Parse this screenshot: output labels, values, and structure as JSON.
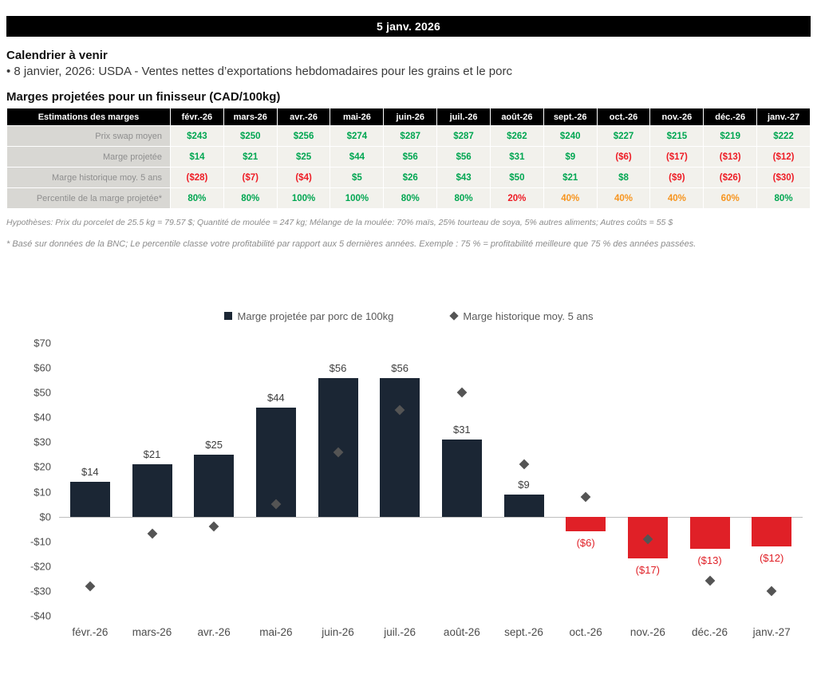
{
  "title_bar": {
    "date": "5 janv. 2026"
  },
  "calendar": {
    "heading": "Calendrier à venir",
    "items": [
      "• 8 janvier, 2026: USDA - Ventes nettes d’exportations hebdomadaires pour les grains et le porc"
    ]
  },
  "margins": {
    "heading": "Marges projetées pour un finisseur (CAD/100kg)",
    "table": {
      "columns": [
        "Estimations des marges",
        "févr.-26",
        "mars-26",
        "avr.-26",
        "mai-26",
        "juin-26",
        "juil.-26",
        "août-26",
        "sept.-26",
        "oct.-26",
        "nov.-26",
        "déc.-26",
        "janv.-27"
      ],
      "rows": [
        {
          "label": "Prix swap moyen",
          "values": [
            "$243",
            "$250",
            "$256",
            "$274",
            "$287",
            "$287",
            "$262",
            "$240",
            "$227",
            "$215",
            "$219",
            "$222"
          ],
          "classes": [
            "pos",
            "pos",
            "pos",
            "pos",
            "pos",
            "pos",
            "pos",
            "pos",
            "pos",
            "pos",
            "pos",
            "pos"
          ]
        },
        {
          "label": "Marge projetée",
          "values": [
            "$14",
            "$21",
            "$25",
            "$44",
            "$56",
            "$56",
            "$31",
            "$9",
            "($6)",
            "($17)",
            "($13)",
            "($12)"
          ],
          "classes": [
            "pos",
            "pos",
            "pos",
            "pos",
            "pos",
            "pos",
            "pos",
            "pos",
            "neg",
            "neg",
            "neg",
            "neg"
          ]
        },
        {
          "label": "Marge historique moy. 5 ans",
          "values": [
            "($28)",
            "($7)",
            "($4)",
            "$5",
            "$26",
            "$43",
            "$50",
            "$21",
            "$8",
            "($9)",
            "($26)",
            "($30)"
          ],
          "classes": [
            "neg",
            "neg",
            "neg",
            "pos",
            "pos",
            "pos",
            "pos",
            "pos",
            "pos",
            "neg",
            "neg",
            "neg"
          ]
        },
        {
          "label": "Percentile de la marge projetée*",
          "values": [
            "80%",
            "80%",
            "100%",
            "100%",
            "80%",
            "80%",
            "20%",
            "40%",
            "40%",
            "40%",
            "60%",
            "80%"
          ],
          "classes": [
            "pos",
            "pos",
            "pos",
            "pos",
            "pos",
            "pos",
            "neg",
            "warn",
            "warn",
            "warn",
            "warn",
            "pos"
          ]
        }
      ]
    },
    "hypotheses": "Hypothèses: Prix du porcelet de 25.5 kg = 79.57 $; Quantité de moulée = 247 kg; Mélange de la moulée: 70% maïs, 25% tourteau de soya, 5% autres aliments; Autres coûts = 55 $",
    "footnote": "* Basé sur données de la BNC; Le percentile classe votre profitabilité par rapport aux 5 dernières années. Exemple : 75 % = profitabilité meilleure que 75 % des années passées."
  },
  "chart_data": {
    "type": "bar",
    "categories": [
      "févr.-26",
      "mars-26",
      "avr.-26",
      "mai-26",
      "juin-26",
      "juil.-26",
      "août-26",
      "sept.-26",
      "oct.-26",
      "nov.-26",
      "déc.-26",
      "janv.-27"
    ],
    "series": [
      {
        "name": "Marge projetée par porc de 100kg",
        "type": "bar",
        "values": [
          14,
          21,
          25,
          44,
          56,
          56,
          31,
          9,
          -6,
          -17,
          -13,
          -12
        ],
        "labels": [
          "$14",
          "$21",
          "$25",
          "$44",
          "$56",
          "$56",
          "$31",
          "$9",
          "($6)",
          "($17)",
          "($13)",
          "($12)"
        ]
      },
      {
        "name": "Marge historique moy. 5 ans",
        "type": "scatter",
        "marker": "diamond",
        "values": [
          -28,
          -7,
          -4,
          5,
          26,
          43,
          50,
          21,
          8,
          -9,
          -26,
          -30
        ]
      }
    ],
    "ylim": [
      -40,
      70
    ],
    "ytick_step": 10,
    "legend_position": "top",
    "grid": false,
    "colors": {
      "bar_positive": "#1b2634",
      "bar_negative": "#e02027",
      "marker": "#545454",
      "label_positive": "#3d3d3d",
      "label_negative": "#e02027"
    }
  }
}
